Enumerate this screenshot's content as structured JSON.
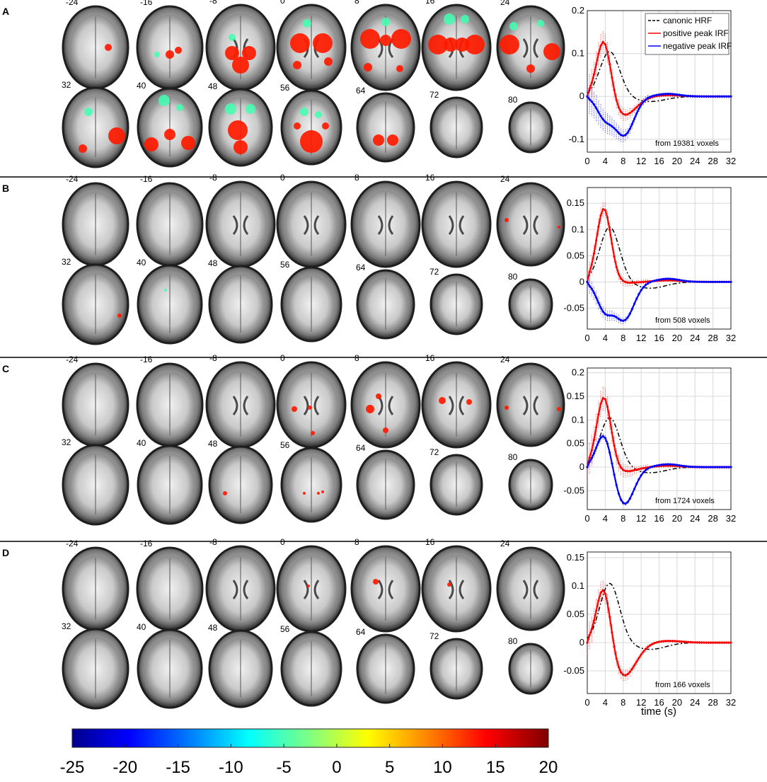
{
  "colors": {
    "canonic": "#000000",
    "positive": "#ff0000",
    "negative": "#0000ff",
    "separator": "#000000",
    "brain_dark": "#3c3c3c",
    "brain_mid": "#8c8c8c",
    "brain_light": "#dcdcdc"
  },
  "slices": [
    "-24",
    "-16",
    "-8",
    "0",
    "8",
    "16",
    "24",
    "32",
    "40",
    "48",
    "56",
    "64",
    "72",
    "80"
  ],
  "panels": [
    {
      "letter": "A",
      "note": "from 19381 voxels",
      "activation": "strong",
      "chart": {
        "type": "line",
        "ylim": [
          -0.13,
          0.2
        ],
        "yticks": [
          -0.1,
          0,
          0.1,
          0.2
        ],
        "ytick_labels": [
          "-0.1",
          "0",
          "0.1",
          "0.2"
        ],
        "series": [
          {
            "key": "positive",
            "peak": 0.14,
            "trough": -0.045,
            "err": 0.035
          },
          {
            "key": "negative",
            "peak": -0.045,
            "trough": -0.09,
            "err": 0.035
          }
        ]
      }
    },
    {
      "letter": "B",
      "note": "from 508 voxels",
      "activation": "sparse",
      "chart": {
        "type": "line",
        "ylim": [
          -0.09,
          0.18
        ],
        "yticks": [
          -0.05,
          0,
          0.05,
          0.1,
          0.15
        ],
        "ytick_labels": [
          "-0.05",
          "0",
          "0.05",
          "0.1",
          "0.15"
        ],
        "series": [
          {
            "key": "positive",
            "peak": 0.14,
            "trough": -0.002,
            "err": 0.02
          },
          {
            "key": "negative",
            "peak": -0.05,
            "trough": -0.072,
            "err": 0.015
          }
        ]
      }
    },
    {
      "letter": "C",
      "note": "from 1724 voxels",
      "activation": "moderate",
      "chart": {
        "type": "line",
        "ylim": [
          -0.09,
          0.21
        ],
        "yticks": [
          -0.05,
          0,
          0.05,
          0.1,
          0.15,
          0.2
        ],
        "ytick_labels": [
          "-0.05",
          "0",
          "0.05",
          "0.1",
          "0.15",
          "0.2"
        ],
        "series": [
          {
            "key": "positive",
            "peak": 0.15,
            "trough": -0.01,
            "err": 0.035
          },
          {
            "key": "negative",
            "peak": 0.075,
            "trough": -0.08,
            "err": 0.01
          }
        ]
      }
    },
    {
      "letter": "D",
      "note": "from 166 voxels",
      "activation": "minimal",
      "chart": {
        "type": "line",
        "ylim": [
          -0.09,
          0.16
        ],
        "yticks": [
          -0.05,
          0,
          0.05,
          0.1,
          0.15
        ],
        "ytick_labels": [
          "-0.05",
          "0",
          "0.05",
          "0.1",
          "0.15"
        ],
        "series": [
          {
            "key": "positive",
            "peak": 0.11,
            "trough": -0.06,
            "err": 0.025
          }
        ]
      }
    }
  ],
  "chart_data": {
    "type": "line",
    "x": [
      0,
      4,
      8,
      12,
      16,
      20,
      24,
      28,
      32
    ],
    "xtick_labels": [
      "0",
      "4",
      "8",
      "12",
      "16",
      "20",
      "24",
      "28",
      "32"
    ],
    "xlim": [
      0,
      32
    ],
    "xlabel": "time (s)",
    "legend": {
      "placement": "top-right",
      "entries": [
        {
          "key": "canonic",
          "label": "canonic HRF",
          "dashed": true
        },
        {
          "key": "positive",
          "label": "positive peak IRF",
          "dashed": false
        },
        {
          "key": "negative",
          "label": "negative peak IRF",
          "dashed": false
        }
      ]
    },
    "canonic_hrf": {
      "peak_time": 5,
      "peak": 0.105,
      "undershoot": -0.012
    },
    "grid": true
  },
  "colorbar": {
    "range": [
      -25,
      20
    ],
    "colormap": "jet",
    "ticks": [
      "-25",
      "-20",
      "-15",
      "-10",
      "-5",
      "0",
      "5",
      "10",
      "15",
      "20"
    ]
  }
}
